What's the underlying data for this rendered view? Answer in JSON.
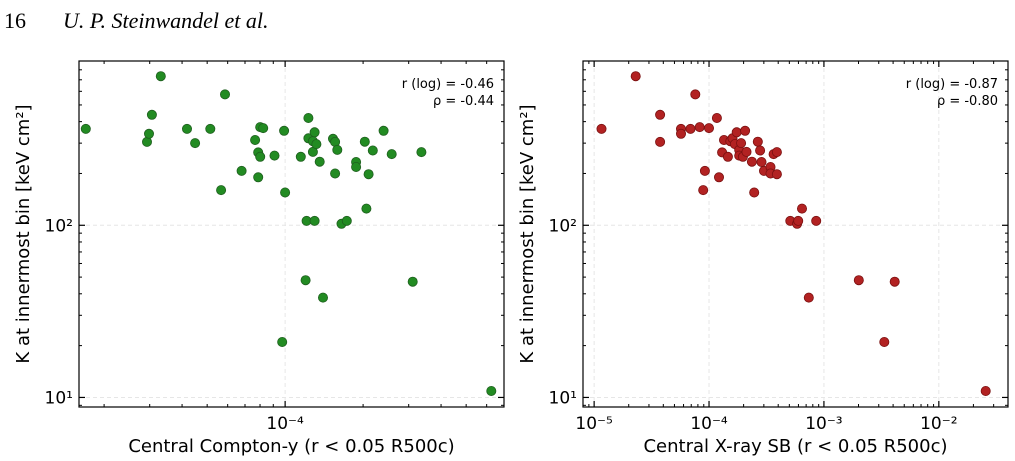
{
  "header": {
    "page_number": "16",
    "authors": "U. P. Steinwandel et al."
  },
  "colors": {
    "green": "#228b22",
    "green_edge": "#1f5f1f",
    "red": "#b22222",
    "red_edge": "#7a1010",
    "grid": "#e6e6e6"
  },
  "chart_data": [
    {
      "type": "scatter",
      "xlabel": "Central Compton-y (r < 0.05 R500c)",
      "ylabel": "K at innermost bin [keV cm²]",
      "xscale": "log",
      "yscale": "log",
      "xlim": [
        1.6e-05,
        0.0007
      ],
      "ylim": [
        8.8,
        900
      ],
      "grid": true,
      "x_ticks": [
        {
          "value": 0.0001,
          "label": "10⁻⁴"
        }
      ],
      "y_ticks": [
        {
          "value": 10,
          "label": "10¹"
        },
        {
          "value": 100,
          "label": "10²"
        }
      ],
      "stats": {
        "r_log": "r (log) = -0.46",
        "rho": "ρ = -0.44"
      },
      "color": "#228b22",
      "points": [
        [
          1.7e-05,
          363
        ],
        [
          2.93e-05,
          305
        ],
        [
          2.98e-05,
          340
        ],
        [
          3.06e-05,
          438
        ],
        [
          3.31e-05,
          734
        ],
        [
          4.18e-05,
          363
        ],
        [
          4.49e-05,
          300
        ],
        [
          5.14e-05,
          363
        ],
        [
          5.66e-05,
          160
        ],
        [
          5.86e-05,
          576
        ],
        [
          6.79e-05,
          207
        ],
        [
          7.66e-05,
          313
        ],
        [
          7.87e-05,
          265
        ],
        [
          7.87e-05,
          190
        ],
        [
          8.01e-05,
          372
        ],
        [
          8.01e-05,
          250
        ],
        [
          8.23e-05,
          367
        ],
        [
          9.1e-05,
          254
        ],
        [
          9.74e-05,
          21
        ],
        [
          9.91e-05,
          354
        ],
        [
          0.0001,
          155
        ],
        [
          0.000115,
          250
        ],
        [
          0.000121,
          106
        ],
        [
          0.00012,
          48
        ],
        [
          0.000123,
          420
        ],
        [
          0.000123,
          320
        ],
        [
          0.000128,
          308
        ],
        [
          0.00013,
          347
        ],
        [
          0.000128,
          267
        ],
        [
          0.00013,
          106
        ],
        [
          0.000132,
          296
        ],
        [
          0.000136,
          234
        ],
        [
          0.00014,
          38
        ],
        [
          0.000153,
          318
        ],
        [
          0.000156,
          200
        ],
        [
          0.000156,
          305
        ],
        [
          0.000159,
          274
        ],
        [
          0.000165,
          102
        ],
        [
          0.000173,
          106
        ],
        [
          0.000188,
          233
        ],
        [
          0.000188,
          218
        ],
        [
          0.000203,
          306
        ],
        [
          0.000206,
          125
        ],
        [
          0.00021,
          198
        ],
        [
          0.000218,
          272
        ],
        [
          0.00024,
          354
        ],
        [
          0.000258,
          259
        ],
        [
          0.000311,
          47
        ],
        [
          0.000336,
          266
        ],
        [
          0.000625,
          10.9
        ]
      ]
    },
    {
      "type": "scatter",
      "xlabel": "Central X-ray SB (r < 0.05 R500c)",
      "ylabel": "K at innermost bin [keV cm²]",
      "xscale": "log",
      "yscale": "log",
      "xlim": [
        8e-06,
        0.04
      ],
      "ylim": [
        8.8,
        900
      ],
      "grid": true,
      "x_ticks": [
        {
          "value": 1e-05,
          "label": "10⁻⁵"
        },
        {
          "value": 0.0001,
          "label": "10⁻⁴"
        },
        {
          "value": 0.001,
          "label": "10⁻³"
        },
        {
          "value": 0.01,
          "label": "10⁻²"
        }
      ],
      "y_ticks": [
        {
          "value": 10,
          "label": "10¹"
        },
        {
          "value": 100,
          "label": "10²"
        }
      ],
      "stats": {
        "r_log": "r (log) = -0.87",
        "rho": "ρ = -0.80"
      },
      "color": "#b22222",
      "points": [
        [
          1.16e-05,
          363
        ],
        [
          2.3e-05,
          734
        ],
        [
          3.75e-05,
          438
        ],
        [
          3.75e-05,
          305
        ],
        [
          5.7e-05,
          363
        ],
        [
          5.7e-05,
          340
        ],
        [
          6.9e-05,
          363
        ],
        [
          7.6e-05,
          576
        ],
        [
          8.3e-05,
          372
        ],
        [
          8.9e-05,
          160
        ],
        [
          9.2e-05,
          207
        ],
        [
          0.0001,
          367
        ],
        [
          0.000117,
          420
        ],
        [
          0.000122,
          190
        ],
        [
          0.00013,
          265
        ],
        [
          0.000135,
          313
        ],
        [
          0.000146,
          250
        ],
        [
          0.000153,
          308
        ],
        [
          0.00016,
          320
        ],
        [
          0.000168,
          296
        ],
        [
          0.000174,
          347
        ],
        [
          0.000183,
          274
        ],
        [
          0.000183,
          254
        ],
        [
          0.00019,
          300
        ],
        [
          0.000197,
          250
        ],
        [
          0.000206,
          354
        ],
        [
          0.000212,
          267
        ],
        [
          0.000236,
          234
        ],
        [
          0.000247,
          155
        ],
        [
          0.000266,
          306
        ],
        [
          0.000278,
          272
        ],
        [
          0.000286,
          233
        ],
        [
          0.000301,
          207
        ],
        [
          0.000343,
          218
        ],
        [
          0.000343,
          200
        ],
        [
          0.000365,
          259
        ],
        [
          0.00039,
          198
        ],
        [
          0.00039,
          266
        ],
        [
          0.00051,
          106
        ],
        [
          0.000584,
          102
        ],
        [
          0.000597,
          106
        ],
        [
          0.000644,
          125
        ],
        [
          0.000739,
          38
        ],
        [
          0.000857,
          106
        ],
        [
          0.00201,
          48
        ],
        [
          0.00335,
          21
        ],
        [
          0.00413,
          47
        ],
        [
          0.0256,
          10.9
        ]
      ]
    }
  ]
}
